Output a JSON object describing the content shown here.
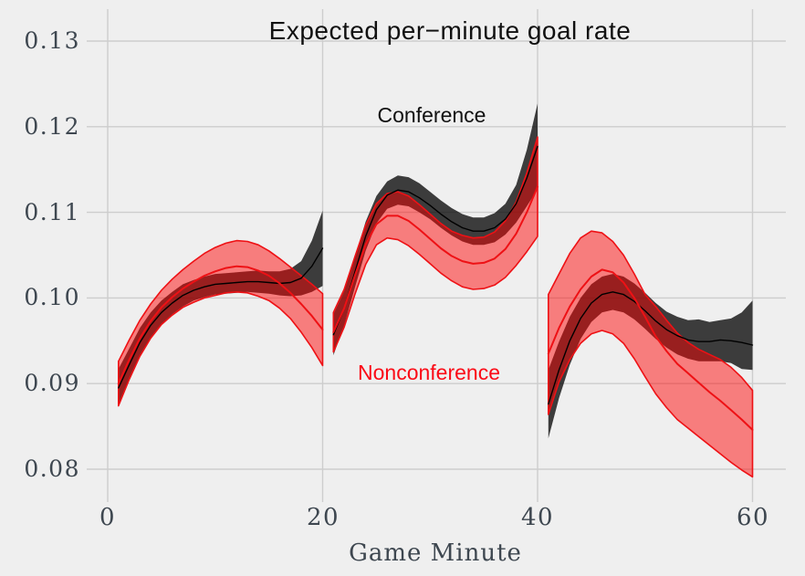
{
  "colors": {
    "background": "#EFEFEF",
    "gridline": "#CDCDCD",
    "tick_text": "#3E4750",
    "conference": "#000000",
    "nonconference": "#FB0A16"
  },
  "annotations": {
    "conference": "Conference",
    "nonconference": "Nonconference"
  },
  "chart_data": {
    "type": "line",
    "title": "Expected per−minute goal rate",
    "xlabel": "Game Minute",
    "ylabel": "",
    "grid": true,
    "legend_position": "inline-annotations",
    "xlim": [
      -2,
      63
    ],
    "ylim": [
      0.076,
      0.134
    ],
    "x_ticks": [
      0,
      20,
      40,
      60
    ],
    "x_tick_labels": [
      "0",
      "20",
      "40",
      "60"
    ],
    "y_ticks": [
      0.13,
      0.12,
      0.11,
      0.1,
      0.09,
      0.08
    ],
    "y_tick_labels": [
      "0.13",
      "0.12",
      "0.11",
      "0.10",
      "0.09",
      "0.08"
    ],
    "note": "curves shown as mean line with confidence band, split into three 20-minute periods",
    "series": [
      {
        "name": "Conference",
        "line_color": "#000000",
        "band_fill": "rgba(0,0,0,0.75)",
        "band_stroke": "none",
        "segments": [
          {
            "x": [
              1,
              2,
              3,
              4,
              5,
              6,
              7,
              8,
              9,
              10,
              11,
              12,
              13,
              14,
              15,
              16,
              17,
              18,
              19,
              20
            ],
            "mean": [
              0.0895,
              0.0922,
              0.0948,
              0.0968,
              0.0983,
              0.0994,
              0.1003,
              0.1009,
              0.1013,
              0.1016,
              0.1017,
              0.1018,
              0.1019,
              0.1019,
              0.1018,
              0.1017,
              0.1018,
              0.1023,
              0.1037,
              0.1058
            ],
            "lo": [
              0.0873,
              0.0903,
              0.0931,
              0.0953,
              0.0969,
              0.0981,
              0.099,
              0.0997,
              0.1001,
              0.1004,
              0.1005,
              0.1006,
              0.1007,
              0.1006,
              0.1005,
              0.1003,
              0.1002,
              0.1003,
              0.1007,
              0.1014
            ],
            "hi": [
              0.0917,
              0.0941,
              0.0965,
              0.0983,
              0.0997,
              0.1007,
              0.1016,
              0.1021,
              0.1025,
              0.1028,
              0.1029,
              0.103,
              0.1031,
              0.1032,
              0.1031,
              0.1031,
              0.1034,
              0.1043,
              0.1067,
              0.1102
            ]
          },
          {
            "x": [
              21,
              22,
              23,
              24,
              25,
              26,
              27,
              28,
              29,
              30,
              31,
              32,
              33,
              34,
              35,
              36,
              37,
              38,
              39,
              40
            ],
            "mean": [
              0.0957,
              0.0988,
              0.103,
              0.1072,
              0.1103,
              0.112,
              0.1126,
              0.1124,
              0.1117,
              0.1108,
              0.1098,
              0.1089,
              0.1082,
              0.1078,
              0.1078,
              0.1082,
              0.1092,
              0.111,
              0.114,
              0.1177
            ],
            "lo": [
              0.0933,
              0.0968,
              0.1012,
              0.1055,
              0.1087,
              0.1104,
              0.1109,
              0.1107,
              0.11,
              0.1092,
              0.1082,
              0.1073,
              0.1066,
              0.1062,
              0.1062,
              0.1065,
              0.1074,
              0.1088,
              0.1107,
              0.1127
            ],
            "hi": [
              0.0981,
              0.1008,
              0.1048,
              0.1089,
              0.1119,
              0.1136,
              0.1143,
              0.1141,
              0.1134,
              0.1124,
              0.1114,
              0.1105,
              0.1098,
              0.1094,
              0.1094,
              0.1099,
              0.111,
              0.1132,
              0.1173,
              0.1227
            ]
          },
          {
            "x": [
              41,
              42,
              43,
              44,
              45,
              46,
              47,
              48,
              49,
              50,
              51,
              52,
              53,
              54,
              55,
              56,
              57,
              58,
              59,
              60
            ],
            "mean": [
              0.0876,
              0.0916,
              0.095,
              0.0976,
              0.0994,
              0.1004,
              0.1007,
              0.1004,
              0.0996,
              0.0985,
              0.0973,
              0.0963,
              0.0956,
              0.0951,
              0.0949,
              0.0949,
              0.0951,
              0.095,
              0.0948,
              0.0945
            ],
            "lo": [
              0.0836,
              0.0883,
              0.0922,
              0.0952,
              0.0972,
              0.0983,
              0.0986,
              0.0983,
              0.0975,
              0.0964,
              0.0952,
              0.0942,
              0.0934,
              0.0929,
              0.0926,
              0.0926,
              0.0926,
              0.0924,
              0.0917,
              0.0916
            ],
            "hi": [
              0.0916,
              0.0949,
              0.0978,
              0.1,
              0.1016,
              0.1025,
              0.1028,
              0.1025,
              0.1017,
              0.1006,
              0.0994,
              0.0984,
              0.0978,
              0.0974,
              0.0975,
              0.0972,
              0.0974,
              0.0976,
              0.0983,
              0.0997
            ]
          }
        ]
      },
      {
        "name": "Nonconference",
        "line_color": "#EE1115",
        "band_fill": "rgba(255,0,0,0.48)",
        "band_stroke": "#EE1115",
        "segments": [
          {
            "x": [
              1,
              2,
              3,
              4,
              5,
              6,
              7,
              8,
              9,
              10,
              11,
              12,
              13,
              14,
              15,
              16,
              17,
              18,
              19,
              20
            ],
            "mean": [
              0.09,
              0.0928,
              0.0953,
              0.0973,
              0.0989,
              0.1001,
              0.1011,
              0.1019,
              0.1026,
              0.1031,
              0.1035,
              0.1037,
              0.1036,
              0.1032,
              0.1026,
              0.1017,
              0.1006,
              0.0993,
              0.0979,
              0.0963
            ],
            "lo": [
              0.0874,
              0.0905,
              0.0932,
              0.0953,
              0.0969,
              0.098,
              0.0989,
              0.0995,
              0.1,
              0.1003,
              0.1006,
              0.1007,
              0.1006,
              0.1002,
              0.0997,
              0.0988,
              0.0976,
              0.096,
              0.0942,
              0.0921
            ],
            "hi": [
              0.0926,
              0.0951,
              0.0974,
              0.0993,
              0.1009,
              0.1022,
              0.1033,
              0.1043,
              0.1052,
              0.1059,
              0.1064,
              0.1067,
              0.1066,
              0.1062,
              0.1055,
              0.1046,
              0.1036,
              0.1026,
              0.1016,
              0.1005
            ]
          },
          {
            "x": [
              21,
              22,
              23,
              24,
              25,
              26,
              27,
              28,
              29,
              30,
              31,
              32,
              33,
              34,
              35,
              36,
              37,
              38,
              39,
              40
            ],
            "mean": [
              0.096,
              0.0988,
              0.1026,
              0.1062,
              0.1086,
              0.1096,
              0.1096,
              0.109,
              0.108,
              0.1069,
              0.1058,
              0.1049,
              0.1043,
              0.104,
              0.1041,
              0.1046,
              0.1057,
              0.1075,
              0.11,
              0.113
            ],
            "lo": [
              0.0937,
              0.0966,
              0.1004,
              0.1039,
              0.1062,
              0.107,
              0.1068,
              0.1061,
              0.1051,
              0.104,
              0.1029,
              0.102,
              0.1013,
              0.101,
              0.1011,
              0.1015,
              0.1024,
              0.1038,
              0.1054,
              0.1072
            ],
            "hi": [
              0.0983,
              0.101,
              0.1048,
              0.1085,
              0.111,
              0.1122,
              0.1124,
              0.1119,
              0.1109,
              0.1098,
              0.1087,
              0.1078,
              0.1073,
              0.107,
              0.1071,
              0.1077,
              0.109,
              0.1112,
              0.1146,
              0.1188
            ]
          },
          {
            "x": [
              41,
              42,
              43,
              44,
              45,
              46,
              47,
              48,
              49,
              50,
              51,
              52,
              53,
              54,
              55,
              56,
              57,
              58,
              59,
              60
            ],
            "mean": [
              0.0935,
              0.0965,
              0.099,
              0.101,
              0.1025,
              0.1033,
              0.103,
              0.1018,
              0.1,
              0.0978,
              0.0955,
              0.0938,
              0.0923,
              0.0912,
              0.0901,
              0.089,
              0.088,
              0.0869,
              0.0858,
              0.0846
            ],
            "lo": [
              0.0864,
              0.0902,
              0.0928,
              0.0947,
              0.0958,
              0.0962,
              0.0958,
              0.0947,
              0.0929,
              0.0908,
              0.0888,
              0.0872,
              0.0858,
              0.0848,
              0.0838,
              0.0828,
              0.0818,
              0.0808,
              0.0799,
              0.0791
            ],
            "hi": [
              0.1004,
              0.1028,
              0.1052,
              0.107,
              0.1078,
              0.1076,
              0.1066,
              0.105,
              0.1028,
              0.1004,
              0.099,
              0.0974,
              0.0959,
              0.0948,
              0.094,
              0.0934,
              0.0928,
              0.0919,
              0.0907,
              0.0892
            ]
          }
        ]
      }
    ]
  }
}
